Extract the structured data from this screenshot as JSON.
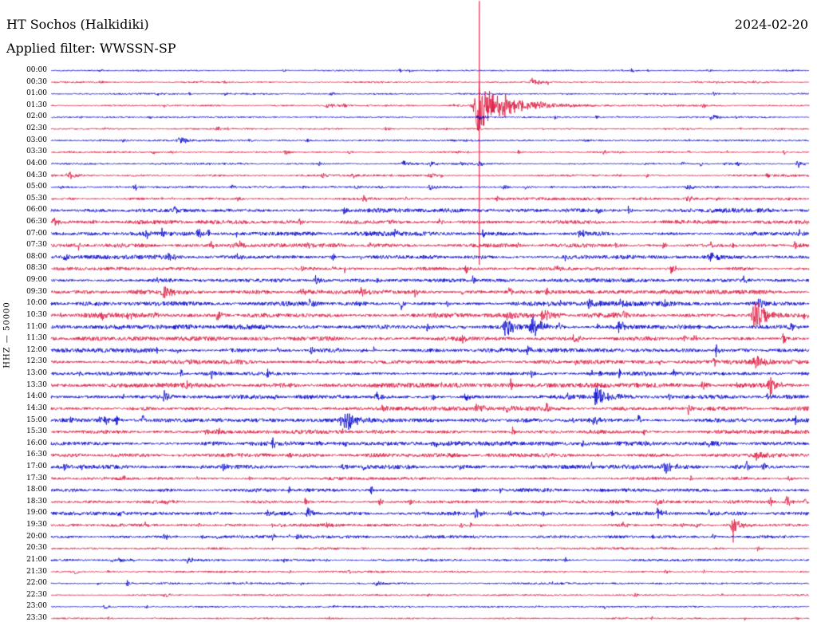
{
  "header": {
    "station_title": "HT Sochos (Halkidiki)",
    "filter_line": "Applied filter: WWSSN-SP",
    "date": "2024-02-20"
  },
  "y_axis": {
    "label": "HHZ — 50000"
  },
  "chart_data": {
    "type": "line",
    "subtype": "helicorder-seismogram",
    "station": "HT Sochos (Halkidiki)",
    "channel": "HHZ",
    "gain": "50000",
    "date": "2024-02-20",
    "filter": "WWSSN-SP",
    "row_interval_minutes": 30,
    "time_range": [
      "00:00",
      "23:30"
    ],
    "main_event": {
      "row": "01:30",
      "x_fraction": 0.565,
      "description": "large clipped earthquake arrival, trace spans rows 00:00 through 08:30"
    },
    "colors": {
      "blue": "#0000cd",
      "red": "#dc143c"
    },
    "rows": [
      {
        "label": "00:00",
        "color": "blue",
        "noise": 0.8,
        "events": []
      },
      {
        "label": "00:30",
        "color": "red",
        "noise": 0.9,
        "events": [
          {
            "x": 0.635,
            "amp": 5,
            "w": 0.012
          },
          {
            "x": 0.655,
            "amp": 3,
            "w": 0.006
          }
        ]
      },
      {
        "label": "01:00",
        "color": "blue",
        "noise": 0.9,
        "events": [
          {
            "x": 0.37,
            "amp": 2.5,
            "w": 0.006
          }
        ]
      },
      {
        "label": "01:30",
        "color": "red",
        "noise": 1.0,
        "events": [
          {
            "x": 0.365,
            "amp": 4,
            "w": 0.008
          },
          {
            "x": 0.565,
            "amp": 34,
            "w": 0.02,
            "spike_up": 131,
            "spike_down": 200
          },
          {
            "x": 0.6,
            "amp": 10,
            "w": 0.05
          }
        ]
      },
      {
        "label": "02:00",
        "color": "blue",
        "noise": 0.9,
        "events": [
          {
            "x": 0.565,
            "amp": 3,
            "w": 0.01
          },
          {
            "x": 0.872,
            "amp": 4,
            "w": 0.01
          }
        ]
      },
      {
        "label": "02:30",
        "color": "red",
        "noise": 0.85,
        "events": [
          {
            "x": 0.22,
            "amp": 2.5,
            "w": 0.006
          },
          {
            "x": 0.44,
            "amp": 3,
            "w": 0.008
          }
        ]
      },
      {
        "label": "03:00",
        "color": "blue",
        "noise": 0.9,
        "events": [
          {
            "x": 0.17,
            "amp": 5,
            "w": 0.012
          }
        ]
      },
      {
        "label": "03:30",
        "color": "red",
        "noise": 1.0,
        "events": [
          {
            "x": 0.31,
            "amp": 3,
            "w": 0.008
          }
        ]
      },
      {
        "label": "04:00",
        "color": "blue",
        "noise": 1.1,
        "events": [
          {
            "x": 0.465,
            "amp": 4,
            "w": 0.008
          },
          {
            "x": 0.5,
            "amp": 4,
            "w": 0.006
          },
          {
            "x": 0.985,
            "amp": 5,
            "w": 0.006
          }
        ]
      },
      {
        "label": "04:30",
        "color": "red",
        "noise": 1.2,
        "events": [
          {
            "x": 0.025,
            "amp": 5,
            "w": 0.01
          },
          {
            "x": 0.5,
            "amp": 5,
            "w": 0.006
          }
        ]
      },
      {
        "label": "05:00",
        "color": "blue",
        "noise": 1.15,
        "events": [
          {
            "x": 0.5,
            "amp": 3.5,
            "w": 0.008
          },
          {
            "x": 0.625,
            "amp": 3,
            "w": 0.006
          },
          {
            "x": 0.84,
            "amp": 3,
            "w": 0.008
          }
        ]
      },
      {
        "label": "05:30",
        "color": "red",
        "noise": 1.5,
        "events": [
          {
            "x": 0.84,
            "amp": 4,
            "w": 0.008
          }
        ]
      },
      {
        "label": "06:00",
        "color": "blue",
        "noise": 2.2,
        "events": []
      },
      {
        "label": "06:30",
        "color": "red",
        "noise": 2.4,
        "events": []
      },
      {
        "label": "07:00",
        "color": "blue",
        "noise": 2.4,
        "events": []
      },
      {
        "label": "07:30",
        "color": "red",
        "noise": 2.2,
        "events": [
          {
            "x": 0.24,
            "amp": 5,
            "w": 0.01
          }
        ]
      },
      {
        "label": "08:00",
        "color": "blue",
        "noise": 2.4,
        "events": [
          {
            "x": 0.155,
            "amp": 5,
            "w": 0.008
          },
          {
            "x": 0.87,
            "amp": 8,
            "w": 0.006
          }
        ]
      },
      {
        "label": "08:30",
        "color": "red",
        "noise": 1.9,
        "events": []
      },
      {
        "label": "09:00",
        "color": "blue",
        "noise": 2.2,
        "events": [
          {
            "x": 0.35,
            "amp": 6,
            "w": 0.008
          }
        ]
      },
      {
        "label": "09:30",
        "color": "red",
        "noise": 2.4,
        "events": [
          {
            "x": 0.15,
            "amp": 7,
            "w": 0.015
          },
          {
            "x": 0.33,
            "amp": 5,
            "w": 0.008
          }
        ]
      },
      {
        "label": "10:00",
        "color": "blue",
        "noise": 2.6,
        "events": [
          {
            "x": 0.71,
            "amp": 6,
            "w": 0.008
          },
          {
            "x": 0.75,
            "amp": 5,
            "w": 0.006
          }
        ]
      },
      {
        "label": "10:30",
        "color": "red",
        "noise": 2.7,
        "events": [
          {
            "x": 0.1,
            "amp": 5,
            "w": 0.008
          },
          {
            "x": 0.65,
            "amp": 10,
            "w": 0.012
          },
          {
            "x": 0.93,
            "amp": 18,
            "w": 0.015
          }
        ]
      },
      {
        "label": "11:00",
        "color": "blue",
        "noise": 2.6,
        "events": [
          {
            "x": 0.6,
            "amp": 12,
            "w": 0.01
          },
          {
            "x": 0.635,
            "amp": 14,
            "w": 0.012
          },
          {
            "x": 0.75,
            "amp": 8,
            "w": 0.006
          }
        ]
      },
      {
        "label": "11:30",
        "color": "red",
        "noise": 2.4,
        "events": [
          {
            "x": 0.69,
            "amp": 6,
            "w": 0.008
          }
        ]
      },
      {
        "label": "12:00",
        "color": "blue",
        "noise": 2.4,
        "events": []
      },
      {
        "label": "12:30",
        "color": "red",
        "noise": 2.5,
        "events": [
          {
            "x": 0.93,
            "amp": 8,
            "w": 0.01
          }
        ]
      },
      {
        "label": "13:00",
        "color": "blue",
        "noise": 2.2,
        "events": []
      },
      {
        "label": "13:30",
        "color": "red",
        "noise": 2.6,
        "events": [
          {
            "x": 0.86,
            "amp": 5,
            "w": 0.008
          },
          {
            "x": 0.95,
            "amp": 12,
            "w": 0.01
          }
        ]
      },
      {
        "label": "14:00",
        "color": "blue",
        "noise": 2.4,
        "events": [
          {
            "x": 0.43,
            "amp": 5,
            "w": 0.008
          },
          {
            "x": 0.72,
            "amp": 12,
            "w": 0.012
          }
        ]
      },
      {
        "label": "14:30",
        "color": "red",
        "noise": 2.2,
        "events": [
          {
            "x": 0.6,
            "amp": 5,
            "w": 0.008
          }
        ]
      },
      {
        "label": "15:00",
        "color": "blue",
        "noise": 2.4,
        "events": [
          {
            "x": 0.065,
            "amp": 4,
            "w": 0.006
          },
          {
            "x": 0.39,
            "amp": 12,
            "w": 0.015
          }
        ]
      },
      {
        "label": "15:30",
        "color": "red",
        "noise": 2.2,
        "events": [
          {
            "x": 0.22,
            "amp": 4,
            "w": 0.006
          }
        ]
      },
      {
        "label": "16:00",
        "color": "blue",
        "noise": 2.4,
        "events": []
      },
      {
        "label": "16:30",
        "color": "red",
        "noise": 2.2,
        "events": [
          {
            "x": 0.93,
            "amp": 6,
            "w": 0.008
          }
        ]
      },
      {
        "label": "17:00",
        "color": "blue",
        "noise": 2.2,
        "events": [
          {
            "x": 0.81,
            "amp": 8,
            "w": 0.01
          },
          {
            "x": 0.94,
            "amp": 6,
            "w": 0.006
          }
        ]
      },
      {
        "label": "17:30",
        "color": "red",
        "noise": 1.8,
        "events": []
      },
      {
        "label": "18:00",
        "color": "blue",
        "noise": 2.0,
        "events": []
      },
      {
        "label": "18:30",
        "color": "red",
        "noise": 1.8,
        "events": [
          {
            "x": 0.8,
            "amp": 5,
            "w": 0.008
          }
        ]
      },
      {
        "label": "19:00",
        "color": "blue",
        "noise": 2.0,
        "events": [
          {
            "x": 0.56,
            "amp": 7,
            "w": 0.008
          },
          {
            "x": 0.8,
            "amp": 6,
            "w": 0.008
          }
        ]
      },
      {
        "label": "19:30",
        "color": "red",
        "noise": 1.7,
        "events": [
          {
            "x": 0.9,
            "amp": 10,
            "w": 0.01,
            "spike_down": 22
          }
        ]
      },
      {
        "label": "20:00",
        "color": "blue",
        "noise": 1.6,
        "events": [
          {
            "x": 0.15,
            "amp": 4,
            "w": 0.008
          }
        ]
      },
      {
        "label": "20:30",
        "color": "red",
        "noise": 1.2,
        "events": []
      },
      {
        "label": "21:00",
        "color": "blue",
        "noise": 1.3,
        "events": []
      },
      {
        "label": "21:30",
        "color": "red",
        "noise": 1.0,
        "events": []
      },
      {
        "label": "22:00",
        "color": "blue",
        "noise": 1.0,
        "events": [
          {
            "x": 0.1,
            "amp": 5,
            "w": 0.004
          },
          {
            "x": 0.43,
            "amp": 4,
            "w": 0.01
          }
        ]
      },
      {
        "label": "22:30",
        "color": "red",
        "noise": 1.0,
        "events": [
          {
            "x": 0.15,
            "amp": 4,
            "w": 0.006
          }
        ]
      },
      {
        "label": "23:00",
        "color": "blue",
        "noise": 0.9,
        "events": [
          {
            "x": 0.07,
            "amp": 3,
            "w": 0.006
          }
        ]
      },
      {
        "label": "23:30",
        "color": "red",
        "noise": 0.9,
        "events": []
      }
    ]
  }
}
